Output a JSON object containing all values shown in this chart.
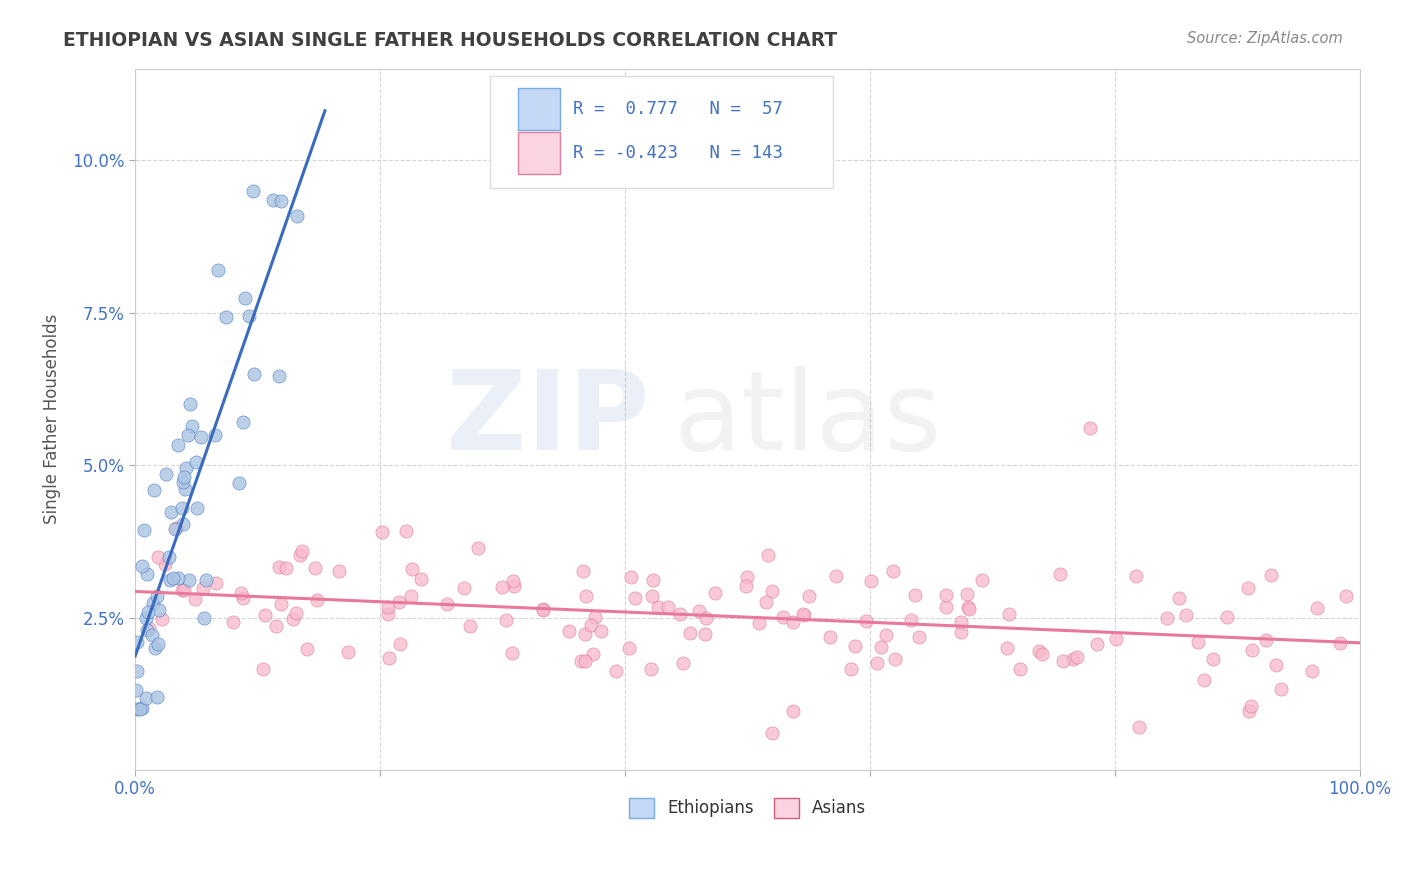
{
  "title": "ETHIOPIAN VS ASIAN SINGLE FATHER HOUSEHOLDS CORRELATION CHART",
  "source": "Source: ZipAtlas.com",
  "ylabel": "Single Father Households",
  "ethiopian_R": 0.777,
  "ethiopian_N": 57,
  "asian_R": -0.423,
  "asian_N": 143,
  "ethiopian_color": "#aac4e2",
  "asian_color": "#f9b8cc",
  "ethiopian_line_color": "#3a6bbf",
  "asian_line_color": "#e8799a",
  "legend_box_blue": "#c5d8f5",
  "legend_box_pink": "#fad4e0",
  "watermark_zip_color": "#4472c4",
  "watermark_atlas_color": "#999999",
  "background_color": "#ffffff",
  "grid_color": "#cccccc",
  "title_color": "#404040",
  "tick_color": "#4472c4",
  "xlim": [
    0.0,
    1.0
  ],
  "ylim": [
    0.0,
    0.115
  ],
  "ytick_vals": [
    0.025,
    0.05,
    0.075,
    0.1
  ],
  "ytick_labels": [
    "2.5%",
    "5.0%",
    "7.5%",
    "10.0%"
  ],
  "xtick_vals": [
    0.0,
    1.0
  ],
  "xtick_labels": [
    "0.0%",
    "100.0%"
  ]
}
